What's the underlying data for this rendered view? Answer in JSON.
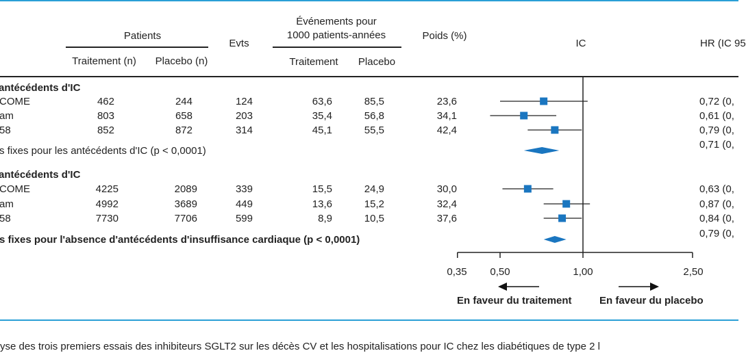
{
  "header": {
    "patients": "Patients",
    "traitement_n": "Traitement (n)",
    "placebo_n": "Placebo (n)",
    "evts": "Evts",
    "events_line1": "Événements pour",
    "events_line2": "1000 patients-années",
    "ev_traitement": "Traitement",
    "ev_placebo": "Placebo",
    "poids": "Poids (%)",
    "ic": "IC",
    "hr": "HR (IC 95"
  },
  "groups": [
    {
      "title": "antécédents d'IC",
      "rows": [
        {
          "study": "COME",
          "trt": "462",
          "pla": "244",
          "evts": "124",
          "ev_trt": "63,6",
          "ev_pla": "85,5",
          "poids": "23,6",
          "hr_text": "0,72 (0,",
          "hr": 0.72,
          "lo": 0.5,
          "hi": 1.04
        },
        {
          "study": "am",
          "trt": "803",
          "pla": "658",
          "evts": "203",
          "ev_trt": "35,4",
          "ev_pla": "56,8",
          "poids": "34,1",
          "hr_text": "0,61 (0,",
          "hr": 0.61,
          "lo": 0.46,
          "hi": 0.8
        },
        {
          "study": "58",
          "trt": "852",
          "pla": "872",
          "evts": "314",
          "ev_trt": "45,1",
          "ev_pla": "55,5",
          "poids": "42,4",
          "hr_text": "0,79 (0,",
          "hr": 0.79,
          "lo": 0.63,
          "hi": 0.99
        }
      ],
      "summary": {
        "label": "s fixes pour les antécédents d'IC (p < 0,0001)",
        "hr_text": "0,71 (0,",
        "hr": 0.71,
        "lo": 0.61,
        "hi": 0.82,
        "bold": false
      }
    },
    {
      "title": "antécédents d'IC",
      "rows": [
        {
          "study": "COME",
          "trt": "4225",
          "pla": "2089",
          "evts": "339",
          "ev_trt": "15,5",
          "ev_pla": "24,9",
          "poids": "30,0",
          "hr_text": "0,63 (0,",
          "hr": 0.63,
          "lo": 0.51,
          "hi": 0.78
        },
        {
          "study": "am",
          "trt": "4992",
          "pla": "3689",
          "evts": "449",
          "ev_trt": "13,6",
          "ev_pla": "15,2",
          "poids": "32,4",
          "hr_text": "0,87 (0,",
          "hr": 0.87,
          "lo": 0.72,
          "hi": 1.06
        },
        {
          "study": "58",
          "trt": "7730",
          "pla": "7706",
          "evts": "599",
          "ev_trt": "8,9",
          "ev_pla": "10,5",
          "poids": "37,6",
          "hr_text": "0,84 (0,",
          "hr": 0.84,
          "lo": 0.72,
          "hi": 0.99
        }
      ],
      "summary": {
        "label": "s fixes pour l'absence d'antécédents d'insuffisance cardiaque (p < 0,0001)",
        "hr_text": "0,79 (0,",
        "hr": 0.79,
        "lo": 0.72,
        "hi": 0.87,
        "bold": true
      }
    }
  ],
  "chart_data": {
    "type": "forest",
    "x_scale": "log",
    "x_ticks": [
      0.35,
      0.5,
      1.0,
      2.5
    ],
    "x_tick_labels": [
      "0,35",
      "0,50",
      "1,00",
      "2,50"
    ],
    "reference_line": 1.0,
    "favor_left": "En faveur du traitement",
    "favor_right": "En faveur du placebo",
    "marker_color": "#1a76c0"
  },
  "caption": "yse des trois premiers essais des inhibiteurs SGLT2 sur les décès CV et les hospitalisations pour IC chez les diabétiques de type 2 l"
}
